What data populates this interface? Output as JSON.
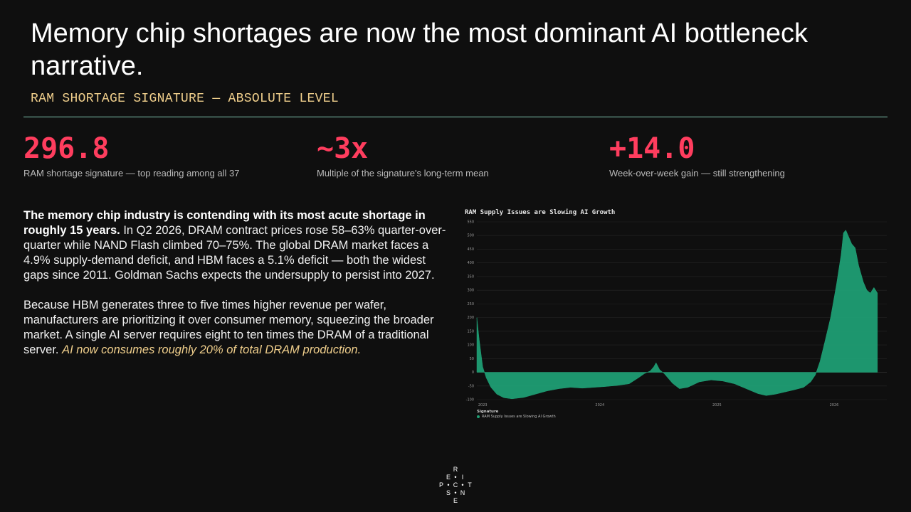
{
  "title": "Memory chip shortages are now the most dominant AI bottleneck narrative.",
  "subtitle": "RAM SHORTAGE SIGNATURE — ABSOLUTE LEVEL",
  "stats": [
    {
      "value": "296.8",
      "label": "RAM shortage signature — top reading among all 37"
    },
    {
      "value": "~3x",
      "label": "Multiple of the signature's long-term mean"
    },
    {
      "value": "+14.0",
      "label": "Week-over-week gain — still strengthening"
    }
  ],
  "body": {
    "p1_bold": "The memory chip industry is contending with its most acute shortage in roughly 15 years.",
    "p1_rest": " In Q2 2026, DRAM contract prices rose 58–63% quarter-over-quarter while NAND Flash climbed 70–75%. The global DRAM market faces a 4.9% supply-demand deficit, and HBM faces a 5.1% deficit — both the widest gaps since 2011. Goldman Sachs expects the undersupply to persist into 2027.",
    "p2_rest": "Because HBM generates three to five times higher revenue per wafer, manufacturers are prioritizing it over consumer memory, squeezing the broader market. A single AI server requires eight to ten times the DRAM of a traditional server. ",
    "p2_highlight": "AI now consumes roughly 20% of total DRAM production."
  },
  "chart_data": {
    "type": "area",
    "title": "RAM Supply Issues are Slowing AI Growth",
    "xlabel": "",
    "ylabel": "",
    "ylim": [
      -100,
      550
    ],
    "xlim": [
      2022.95,
      2026.45
    ],
    "yticks": [
      -100,
      -50,
      0,
      50,
      100,
      150,
      200,
      250,
      300,
      350,
      400,
      450,
      500,
      550
    ],
    "xticks": [
      {
        "value": 2023.0,
        "label": "2023"
      },
      {
        "value": 2024.0,
        "label": "2024"
      },
      {
        "value": 2025.0,
        "label": "2025"
      },
      {
        "value": 2026.0,
        "label": "2026"
      }
    ],
    "grid": true,
    "legend": {
      "title": "Signature",
      "placement": "bottom-left"
    },
    "series": [
      {
        "name": "RAM Supply Issues are Slowing AI Growth",
        "color": "#1f9e74",
        "points": [
          [
            2022.95,
            200
          ],
          [
            2022.97,
            120
          ],
          [
            2023.0,
            20
          ],
          [
            2023.03,
            -20
          ],
          [
            2023.07,
            -55
          ],
          [
            2023.12,
            -80
          ],
          [
            2023.18,
            -93
          ],
          [
            2023.25,
            -97
          ],
          [
            2023.35,
            -92
          ],
          [
            2023.45,
            -80
          ],
          [
            2023.55,
            -68
          ],
          [
            2023.65,
            -60
          ],
          [
            2023.75,
            -55
          ],
          [
            2023.85,
            -58
          ],
          [
            2023.95,
            -55
          ],
          [
            2024.05,
            -52
          ],
          [
            2024.15,
            -48
          ],
          [
            2024.25,
            -42
          ],
          [
            2024.33,
            -20
          ],
          [
            2024.38,
            -5
          ],
          [
            2024.43,
            5
          ],
          [
            2024.46,
            20
          ],
          [
            2024.48,
            35
          ],
          [
            2024.51,
            10
          ],
          [
            2024.55,
            -5
          ],
          [
            2024.62,
            -40
          ],
          [
            2024.68,
            -60
          ],
          [
            2024.75,
            -55
          ],
          [
            2024.85,
            -35
          ],
          [
            2024.95,
            -28
          ],
          [
            2025.05,
            -32
          ],
          [
            2025.15,
            -42
          ],
          [
            2025.25,
            -60
          ],
          [
            2025.35,
            -78
          ],
          [
            2025.42,
            -85
          ],
          [
            2025.5,
            -80
          ],
          [
            2025.58,
            -72
          ],
          [
            2025.66,
            -64
          ],
          [
            2025.74,
            -55
          ],
          [
            2025.8,
            -35
          ],
          [
            2025.84,
            -10
          ],
          [
            2025.88,
            40
          ],
          [
            2025.92,
            110
          ],
          [
            2025.97,
            200
          ],
          [
            2026.02,
            320
          ],
          [
            2026.06,
            430
          ],
          [
            2026.08,
            510
          ],
          [
            2026.1,
            520
          ],
          [
            2026.12,
            500
          ],
          [
            2026.15,
            470
          ],
          [
            2026.18,
            455
          ],
          [
            2026.21,
            390
          ],
          [
            2026.25,
            330
          ],
          [
            2026.28,
            300
          ],
          [
            2026.31,
            290
          ],
          [
            2026.34,
            310
          ],
          [
            2026.37,
            290
          ]
        ]
      }
    ]
  },
  "logo": {
    "letters": [
      "R",
      "E",
      "I",
      "P",
      "C",
      "T",
      "S",
      "N",
      "E"
    ]
  }
}
